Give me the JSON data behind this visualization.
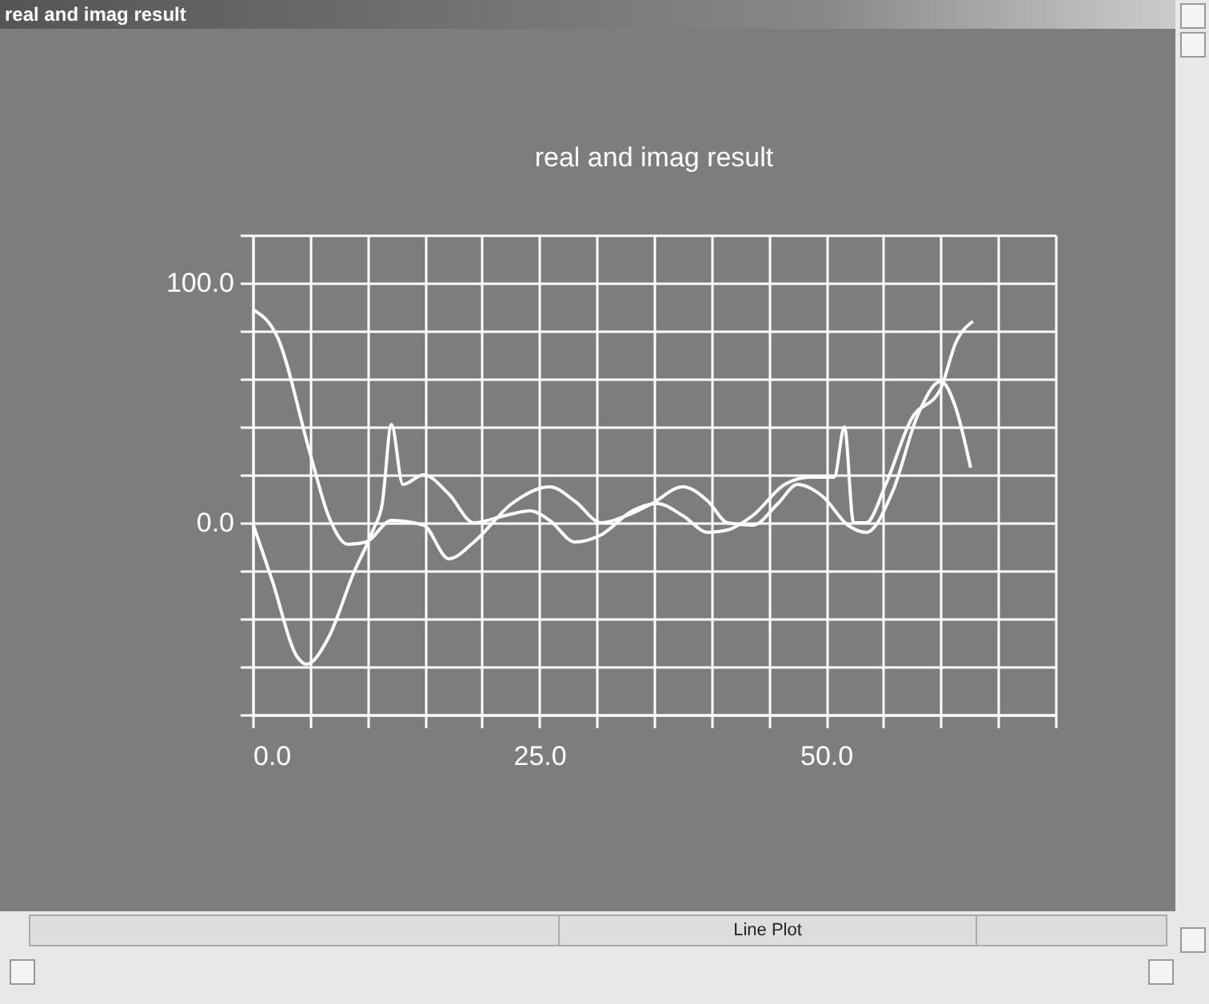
{
  "chart_data": {
    "type": "line",
    "title": "real and imag result",
    "annotations": [
      "real and imag result",
      "Line Plot"
    ],
    "xlim": [
      0,
      70
    ],
    "ylim": [
      -80,
      120
    ],
    "xticks": [
      {
        "value": 0,
        "label": "0.0"
      },
      {
        "value": 5,
        "label": null
      },
      {
        "value": 10,
        "label": null
      },
      {
        "value": 15,
        "label": null
      },
      {
        "value": 20,
        "label": null
      },
      {
        "value": 25,
        "label": "25.0"
      },
      {
        "value": 30,
        "label": null
      },
      {
        "value": 35,
        "label": null
      },
      {
        "value": 40,
        "label": null
      },
      {
        "value": 45,
        "label": null
      },
      {
        "value": 50,
        "label": "50.0"
      },
      {
        "value": 55,
        "label": null
      },
      {
        "value": 60,
        "label": null
      },
      {
        "value": 65,
        "label": null
      },
      {
        "value": 70,
        "label": null
      }
    ],
    "yticks": [
      {
        "value": -80,
        "label": null
      },
      {
        "value": -60,
        "label": null
      },
      {
        "value": -40,
        "label": null
      },
      {
        "value": -20,
        "label": null
      },
      {
        "value": 0,
        "label": "0.0"
      },
      {
        "value": 20,
        "label": null
      },
      {
        "value": 40,
        "label": null
      },
      {
        "value": 60,
        "label": null
      },
      {
        "value": 80,
        "label": null
      },
      {
        "value": 100,
        "label": "100.0"
      },
      {
        "value": 120,
        "label": null
      }
    ],
    "grid": true,
    "marker": "none",
    "line_style": "solid",
    "series": [
      {
        "color": "#ffffff",
        "x": [
          0,
          2.2,
          5,
          6.6,
          8.3,
          9.9,
          12.1,
          14.9,
          17.1,
          19.3,
          22.6,
          25.9,
          28.1,
          30.4,
          32.6,
          34.8,
          37.5,
          39.7,
          41.4,
          43.6,
          45.8,
          47.5,
          49.7,
          51.9,
          53.5,
          55.8,
          58,
          60,
          61.3,
          62.6
        ],
        "values": [
          89,
          77,
          29,
          3,
          -9,
          -8,
          1,
          -1,
          -15,
          -8,
          8,
          15,
          9,
          0,
          3,
          8,
          15,
          9,
          0,
          -1,
          8,
          16,
          11,
          -1,
          -4,
          13,
          45,
          59,
          48,
          23
        ]
      },
      {
        "color": "#ffffff",
        "x": [
          0,
          1.7,
          3.9,
          4.7,
          6.6,
          8.8,
          10.5,
          11.3,
          12.1,
          13.1,
          14.9,
          17.1,
          19.3,
          22,
          24.2,
          25.9,
          28.1,
          30.4,
          33.1,
          35.3,
          37.5,
          39.7,
          41.4,
          43.6,
          46.4,
          48.6,
          50.7,
          51.6,
          52.4,
          53.5,
          55.2,
          57.4,
          60,
          61.3,
          62.8
        ],
        "values": [
          0,
          -24,
          -56,
          -59,
          -48,
          -21,
          -3,
          8,
          41,
          16,
          20,
          12,
          0,
          3,
          5,
          1,
          -8,
          -5,
          5,
          8,
          3,
          -4,
          -3,
          3,
          16,
          19,
          19,
          40,
          0,
          0,
          16,
          43,
          56,
          75,
          84
        ]
      }
    ]
  }
}
